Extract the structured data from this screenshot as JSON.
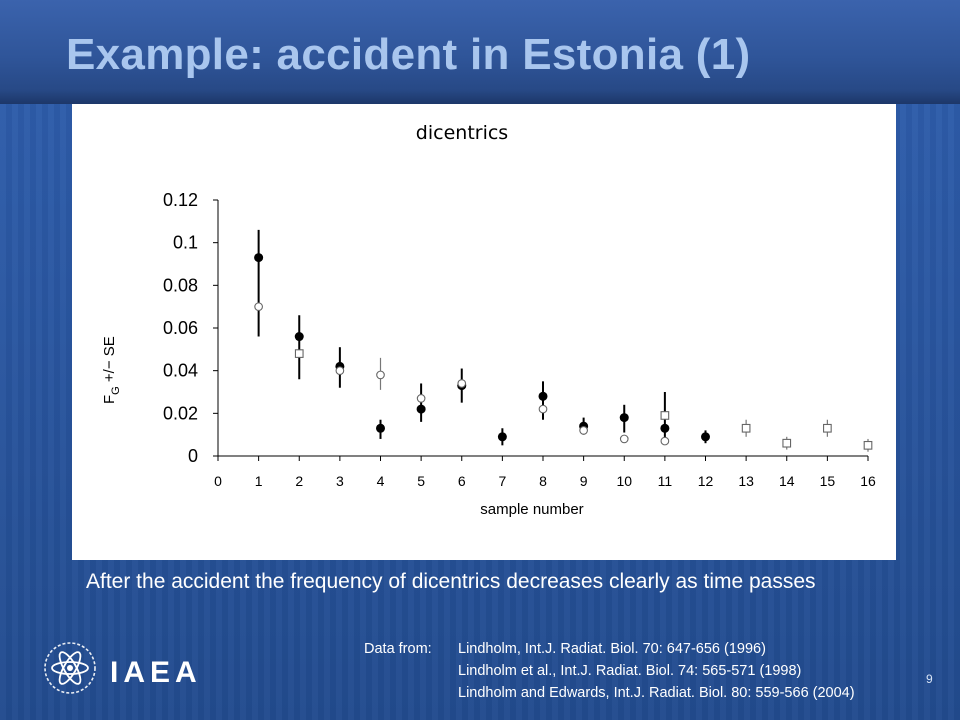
{
  "slide": {
    "title": "Example: accident in Estonia (1)",
    "caption": "After the accident the frequency of dicentrics decreases clearly as time passes",
    "logo_text": "IAEA",
    "logo_icon": "atom-icon",
    "data_from_label": "Data from:",
    "references": [
      "Lindholm, Int.J. Radiat. Biol. 70: 647-656 (1996)",
      "Lindholm et al., Int.J. Radiat. Biol. 74: 565-571 (1998)",
      "Lindholm and Edwards, Int.J. Radiat. Biol. 80: 559-566 (2004)"
    ],
    "page_number": "9"
  },
  "chart_data": {
    "type": "scatter",
    "title": "dicentrics",
    "xlabel": "sample number",
    "ylabel": "F",
    "ylabel_subscript": "G",
    "ylabel_suffix": " +/− SE",
    "xlim": [
      0,
      16
    ],
    "ylim": [
      0,
      0.12
    ],
    "x_ticks": [
      0,
      1,
      2,
      3,
      4,
      5,
      6,
      7,
      8,
      9,
      10,
      11,
      12,
      13,
      14,
      15,
      16
    ],
    "y_ticks": [
      0,
      0.02,
      0.04,
      0.06,
      0.08,
      0.1,
      0.12
    ],
    "y_tick_labels": [
      "0",
      "0.02",
      "0.04",
      "0.06",
      "0.08",
      "0.1",
      "0.12"
    ],
    "grid": false,
    "series": [
      {
        "marker": "filled-circle",
        "points": [
          {
            "x": 1,
            "y": 0.093,
            "lo": 0.056,
            "hi": 0.106
          },
          {
            "x": 2,
            "y": 0.056,
            "lo": 0.036,
            "hi": 0.066
          },
          {
            "x": 3,
            "y": 0.042,
            "lo": 0.032,
            "hi": 0.051
          },
          {
            "x": 4,
            "y": 0.013,
            "lo": 0.008,
            "hi": 0.017
          },
          {
            "x": 5,
            "y": 0.022,
            "lo": 0.016,
            "hi": 0.034
          },
          {
            "x": 6,
            "y": 0.033,
            "lo": 0.025,
            "hi": 0.041
          },
          {
            "x": 7,
            "y": 0.009,
            "lo": 0.005,
            "hi": 0.013
          },
          {
            "x": 8,
            "y": 0.028,
            "lo": 0.017,
            "hi": 0.035
          },
          {
            "x": 9,
            "y": 0.014,
            "lo": 0.01,
            "hi": 0.018
          },
          {
            "x": 10,
            "y": 0.018,
            "lo": 0.011,
            "hi": 0.024
          },
          {
            "x": 11,
            "y": 0.013,
            "lo": 0.006,
            "hi": 0.03
          },
          {
            "x": 12,
            "y": 0.009,
            "lo": 0.006,
            "hi": 0.012
          }
        ]
      },
      {
        "marker": "open-circle",
        "points": [
          {
            "x": 1,
            "y": 0.07
          },
          {
            "x": 3,
            "y": 0.04
          },
          {
            "x": 4,
            "y": 0.038,
            "lo": 0.031,
            "hi": 0.046
          },
          {
            "x": 5,
            "y": 0.027
          },
          {
            "x": 6,
            "y": 0.034
          },
          {
            "x": 8,
            "y": 0.022
          },
          {
            "x": 9,
            "y": 0.012
          },
          {
            "x": 10,
            "y": 0.008
          },
          {
            "x": 11,
            "y": 0.007
          }
        ]
      },
      {
        "marker": "open-square",
        "points": [
          {
            "x": 2,
            "y": 0.048
          },
          {
            "x": 11,
            "y": 0.019
          },
          {
            "x": 13,
            "y": 0.013,
            "lo": 0.009,
            "hi": 0.017
          },
          {
            "x": 14,
            "y": 0.006,
            "lo": 0.003,
            "hi": 0.009
          },
          {
            "x": 15,
            "y": 0.013,
            "lo": 0.009,
            "hi": 0.017
          },
          {
            "x": 16,
            "y": 0.005,
            "lo": 0.002,
            "hi": 0.008
          }
        ]
      }
    ]
  }
}
